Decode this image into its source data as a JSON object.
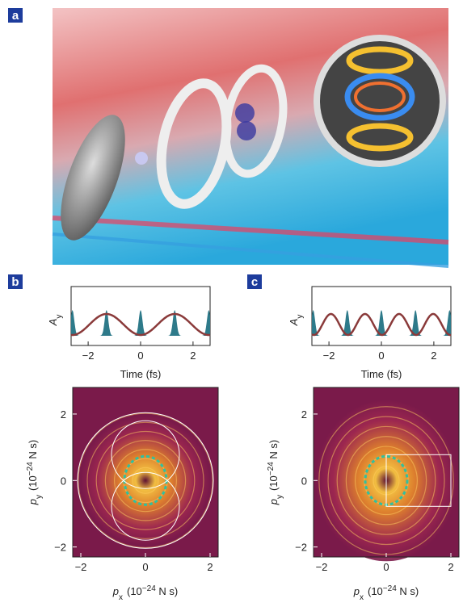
{
  "panels": [
    {
      "label": "a"
    },
    {
      "label": "b",
      "time": {
        "ylabel": {
          "symbol": "A",
          "sub": "y"
        },
        "xlabel": "Time (fs)",
        "xlim": [
          -2.65,
          2.65
        ],
        "xticks": [
          {
            "value": -2,
            "label": "−2"
          },
          0,
          2
        ]
      },
      "momentum": {
        "xlabel": {
          "symbol": "p",
          "sub": "x",
          "pre": "(10",
          "exp": "−24",
          "post": " N s)"
        },
        "ylabel": {
          "symbol": "p",
          "sub": "y",
          "pre": "(10",
          "exp": "−24",
          "post": " N s)"
        },
        "xlim": [
          -2.25,
          2.25
        ],
        "ylim": [
          -2.3,
          2.8
        ],
        "xticks": [
          {
            "value": -2,
            "label": "−2"
          },
          0,
          2
        ],
        "yticks": [
          {
            "value": -2,
            "label": "−2"
          },
          0,
          2
        ]
      }
    },
    {
      "label": "c",
      "time": {
        "ylabel": {
          "symbol": "A",
          "sub": "y"
        },
        "xlabel": "Time (fs)",
        "xlim": [
          -2.65,
          2.65
        ],
        "xticks": [
          {
            "value": -2,
            "label": "−2"
          },
          0,
          2
        ]
      },
      "momentum": {
        "xlabel": {
          "symbol": "p",
          "sub": "x",
          "pre": "(10",
          "exp": "−24",
          "post": " N s)"
        },
        "ylabel": {
          "symbol": "p",
          "sub": "y",
          "pre": "(10",
          "exp": "−24",
          "post": " N s)"
        },
        "xlim": [
          -2.25,
          2.25
        ],
        "ylim": [
          -2.3,
          2.8
        ],
        "xticks": [
          {
            "value": -2,
            "label": "−2"
          },
          0,
          2
        ],
        "yticks": [
          {
            "value": -2,
            "label": "−2"
          },
          0,
          2
        ]
      }
    }
  ]
}
